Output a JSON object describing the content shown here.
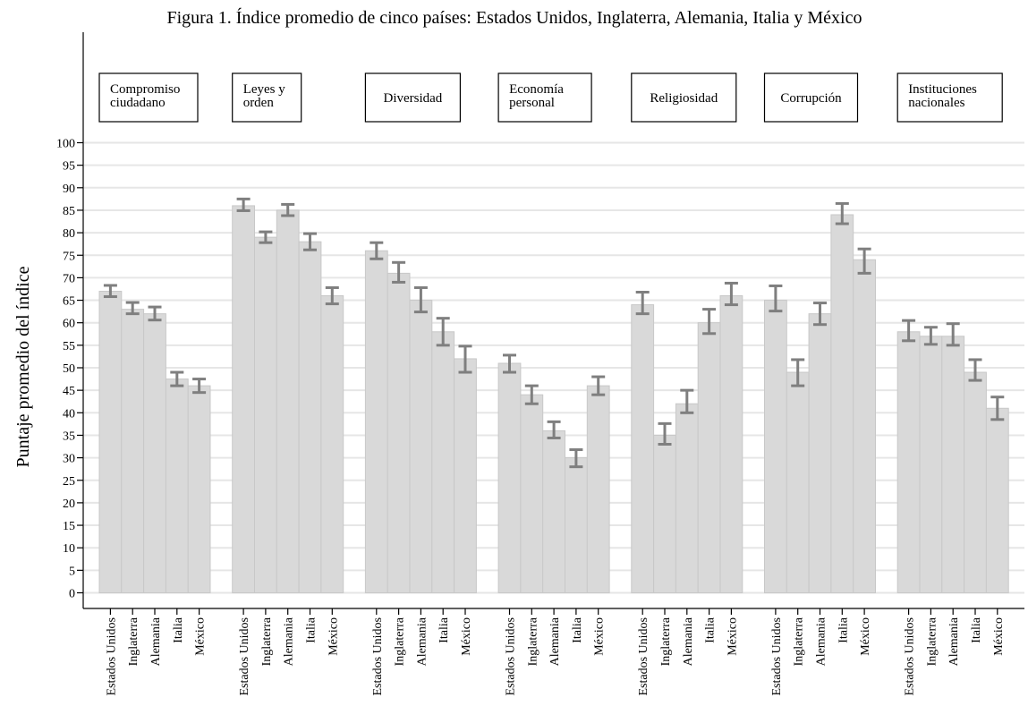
{
  "chart_data": {
    "type": "bar",
    "title": "Figura 1. Índice promedio de cinco países: Estados Unidos, Inglaterra, Alemania, Italia y México",
    "ylabel": "Puntaje promedio del índice",
    "xlabel": "",
    "ylim": [
      0,
      100
    ],
    "yticks": [
      0,
      5,
      10,
      15,
      20,
      25,
      30,
      35,
      40,
      45,
      50,
      55,
      60,
      65,
      70,
      75,
      80,
      85,
      90,
      95,
      100
    ],
    "grid": true,
    "categories": [
      "Estados Unidos",
      "Inglaterra",
      "Alemania",
      "Italia",
      "México"
    ],
    "panels": [
      {
        "label": [
          "Compromiso",
          "ciudadano"
        ],
        "values": [
          67,
          63,
          62,
          47.5,
          46
        ],
        "err_low": [
          65.8,
          62,
          60.6,
          46,
          44.5
        ],
        "err_high": [
          68.3,
          64.5,
          63.5,
          49,
          47.5
        ]
      },
      {
        "label": [
          "Leyes y",
          "orden"
        ],
        "values": [
          86,
          79,
          85,
          78,
          66
        ],
        "err_low": [
          84.9,
          77.8,
          83.8,
          76.2,
          64.2
        ],
        "err_high": [
          87.5,
          80.2,
          86.3,
          79.8,
          67.8
        ]
      },
      {
        "label": [
          "Diversidad"
        ],
        "values": [
          76,
          71,
          65,
          58,
          52
        ],
        "err_low": [
          74.2,
          69,
          62.4,
          55,
          49
        ],
        "err_high": [
          77.8,
          73.4,
          67.8,
          61,
          54.8
        ]
      },
      {
        "label": [
          "Economía",
          "personal"
        ],
        "values": [
          51,
          44,
          36,
          30,
          46
        ],
        "err_low": [
          49,
          42,
          34.4,
          28,
          44
        ],
        "err_high": [
          52.8,
          46,
          38,
          31.8,
          48
        ]
      },
      {
        "label": [
          "Religiosidad"
        ],
        "values": [
          64,
          35,
          42,
          60,
          66
        ],
        "err_low": [
          62,
          33,
          40,
          57.6,
          64
        ],
        "err_high": [
          66.8,
          37.6,
          45,
          63,
          68.8
        ]
      },
      {
        "label": [
          "Corrupción"
        ],
        "values": [
          65,
          49,
          62,
          84,
          74
        ],
        "err_low": [
          62.6,
          46,
          59.6,
          82,
          71
        ],
        "err_high": [
          68.2,
          51.8,
          64.4,
          86.5,
          76.4
        ]
      },
      {
        "label": [
          "Instituciones",
          "nacionales"
        ],
        "values": [
          58,
          57,
          57,
          49,
          41
        ],
        "err_low": [
          56,
          55.2,
          55,
          47.2,
          38.5
        ],
        "err_high": [
          60.5,
          59,
          59.8,
          51.8,
          43.5
        ]
      }
    ]
  },
  "colors": {
    "bar": "#d9d9d9",
    "error_bar": "#7f7f7f",
    "grid": "#e6e6e6"
  }
}
